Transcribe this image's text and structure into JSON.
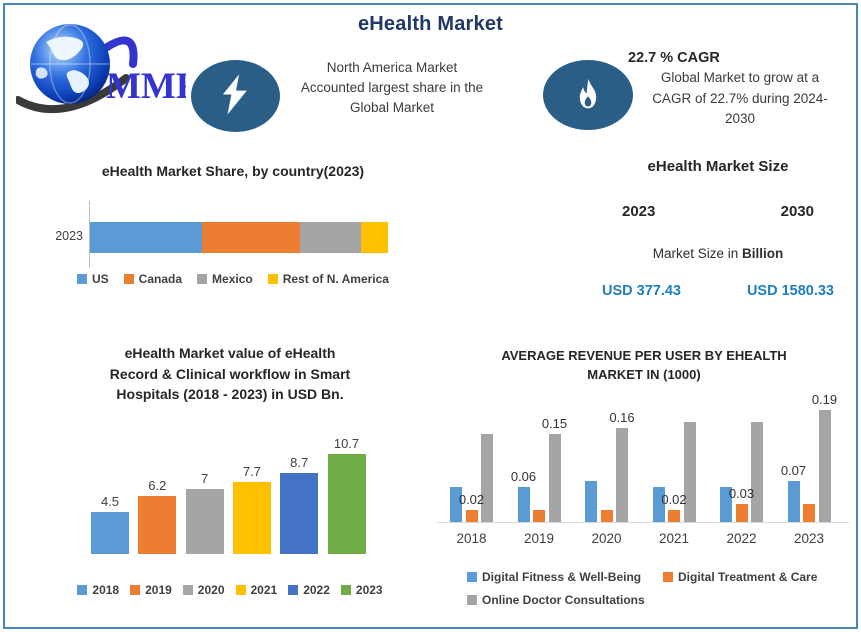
{
  "header": {
    "title": "eHealth Market",
    "logo_text": "MMR",
    "highlight_na": {
      "icon": "lightning-bolt-icon",
      "lines": [
        "North America Market",
        "Accounted largest share in the",
        "Global Market"
      ]
    },
    "highlight_cagr": {
      "icon": "flame-icon",
      "heading": "22.7 % CAGR",
      "lines": [
        "Global Market to grow at a",
        "CAGR of 22.7% during 2024-",
        "2030"
      ]
    }
  },
  "market_size_panel": {
    "title": "eHealth Market Size",
    "year_left": "2023",
    "year_right": "2030",
    "unit_prefix": "Market Size in ",
    "unit_bold": "Billion",
    "value_left": "USD 377.43",
    "value_right": "USD 1580.33",
    "value_color": "#1f7ec2"
  },
  "colors": {
    "accent_navy": "#1f3864",
    "badge_blue": "#2b5e86",
    "border_blue": "#4a85b5",
    "office_blue": "#5B9BD5",
    "office_orange": "#ED7D31",
    "office_gray": "#A5A5A5",
    "office_yellow": "#FFC000",
    "office_darkblue": "#4472C4",
    "office_green": "#70AD47"
  },
  "chart_data": [
    {
      "id": "share-by-country",
      "type": "bar",
      "variant": "horizontal-stacked",
      "title": "eHealth Market Share, by country(2023)",
      "categories": [
        "2023"
      ],
      "series": [
        {
          "name": "US",
          "value": 37.5,
          "color": "#5B9BD5"
        },
        {
          "name": "Canada",
          "value": 33.0,
          "color": "#ED7D31"
        },
        {
          "name": "Mexico",
          "value": 20.5,
          "color": "#A5A5A5"
        },
        {
          "name": "Rest of N. America",
          "value": 9.0,
          "color": "#FFC000"
        }
      ],
      "xlim": [
        0,
        100
      ],
      "legend_position": "bottom",
      "grid": false
    },
    {
      "id": "smart-hospitals-value",
      "type": "bar",
      "title": "eHealth Market value of eHealth Record & Clinical workflow in Smart Hospitals (2018 - 2023) in USD Bn.",
      "title_lines": [
        "eHealth Market value of eHealth",
        "Record & Clinical workflow in Smart",
        "Hospitals (2018 - 2023) in USD Bn."
      ],
      "categories": [
        "2018",
        "2019",
        "2020",
        "2021",
        "2022",
        "2023"
      ],
      "values": [
        4.5,
        6.2,
        7,
        7.7,
        8.7,
        10.7
      ],
      "data_labels": [
        "4.5",
        "6.2",
        "7",
        "7.7",
        "8.7",
        "10.7"
      ],
      "colors": [
        "#5B9BD5",
        "#ED7D31",
        "#A5A5A5",
        "#FFC000",
        "#4472C4",
        "#70AD47"
      ],
      "ylabel": "USD Bn.",
      "ylim": [
        0,
        12
      ],
      "legend_position": "bottom",
      "grid": false
    },
    {
      "id": "arpu-by-market",
      "type": "bar",
      "variant": "grouped",
      "title": "AVERAGE REVENUE PER USER BY EHEALTH MARKET IN (1000)",
      "title_lines": [
        "AVERAGE REVENUE PER USER BY EHEALTH",
        "MARKET IN (1000)"
      ],
      "categories": [
        "2018",
        "2019",
        "2020",
        "2021",
        "2022",
        "2023"
      ],
      "series": [
        {
          "name": "Digital Fitness & Well-Being",
          "color": "#5B9BD5",
          "values": [
            0.06,
            0.06,
            0.07,
            0.06,
            0.06,
            0.07
          ]
        },
        {
          "name": "Digital Treatment & Care",
          "color": "#ED7D31",
          "values": [
            0.02,
            0.02,
            0.02,
            0.02,
            0.03,
            0.03
          ]
        },
        {
          "name": "Online Doctor Consultations",
          "color": "#A5A5A5",
          "values": [
            0.15,
            0.15,
            0.16,
            0.17,
            0.17,
            0.19
          ]
        }
      ],
      "visible_data_labels": [
        {
          "category_index": 0,
          "series_index": 1,
          "text": "0.02"
        },
        {
          "category_index": 1,
          "series_index": 0,
          "text": "0.06"
        },
        {
          "category_index": 1,
          "series_index": 2,
          "text": "0.15"
        },
        {
          "category_index": 2,
          "series_index": 2,
          "text": "0.16"
        },
        {
          "category_index": 3,
          "series_index": 1,
          "text": "0.02"
        },
        {
          "category_index": 4,
          "series_index": 1,
          "text": "0.03"
        },
        {
          "category_index": 5,
          "series_index": 0,
          "text": "0.07"
        },
        {
          "category_index": 5,
          "series_index": 2,
          "text": "0.19"
        }
      ],
      "ylim": [
        0,
        0.2
      ],
      "legend_position": "bottom",
      "grid": false
    }
  ]
}
